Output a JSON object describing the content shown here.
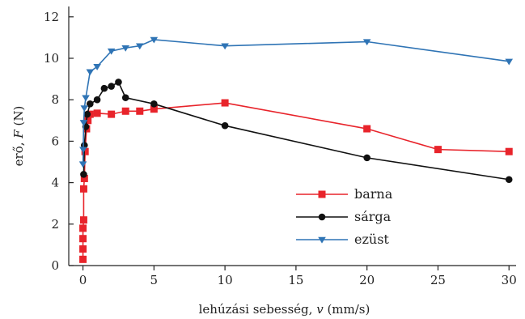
{
  "chart_data": {
    "type": "line",
    "xlabel_text": "lehúzási sebesség, ",
    "xlabel_var": "v",
    "xlabel_unit": "(mm/s)",
    "ylabel_text": "erő, ",
    "ylabel_var": "F",
    "ylabel_unit": "(N)",
    "xlim": [
      -1,
      30.5
    ],
    "ylim": [
      0,
      12.5
    ],
    "xticks": [
      0,
      5,
      10,
      15,
      20,
      25,
      30
    ],
    "yticks": [
      0,
      2,
      4,
      6,
      8,
      10,
      12
    ],
    "grid": false,
    "legend_position": "bottom-center",
    "series": [
      {
        "name": "barna",
        "color": "#e8242b",
        "marker": "square",
        "x": [
          0,
          0,
          0,
          0,
          0.05,
          0.05,
          0.1,
          0.15,
          0.25,
          0.35,
          0.5,
          1,
          2,
          3,
          4,
          5,
          10,
          20,
          25,
          30
        ],
        "y": [
          0.3,
          0.8,
          1.3,
          1.8,
          2.2,
          3.7,
          4.2,
          5.5,
          6.6,
          7.0,
          7.3,
          7.35,
          7.3,
          7.45,
          7.45,
          7.55,
          7.85,
          6.6,
          5.6,
          5.5
        ]
      },
      {
        "name": "sárga",
        "color": "#111111",
        "marker": "circle",
        "x": [
          0.05,
          0.1,
          0.2,
          0.3,
          0.5,
          1,
          1.5,
          2,
          2.5,
          3,
          5,
          10,
          20,
          30
        ],
        "y": [
          4.4,
          5.8,
          6.7,
          7.3,
          7.8,
          8.0,
          8.55,
          8.65,
          8.85,
          8.1,
          7.8,
          6.75,
          5.2,
          4.15
        ]
      },
      {
        "name": "ezüst",
        "color": "#2f74b5",
        "marker": "triangle-down",
        "x": [
          0,
          0.02,
          0.05,
          0.1,
          0.2,
          0.5,
          1,
          2,
          3,
          4,
          5,
          10,
          20,
          30
        ],
        "y": [
          4.9,
          5.6,
          6.9,
          7.6,
          8.1,
          9.35,
          9.6,
          10.35,
          10.5,
          10.6,
          10.9,
          10.6,
          10.8,
          9.85
        ]
      }
    ]
  }
}
